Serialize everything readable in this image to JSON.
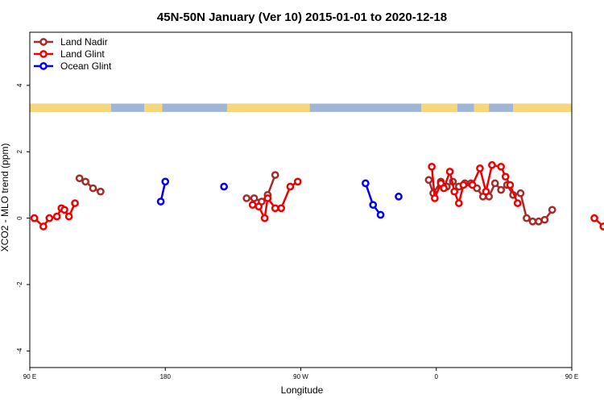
{
  "chart_data": {
    "type": "line",
    "title": "45N-50N January (Ver 10)   2015-01-01 to 2020-12-18",
    "xlabel": "Longitude",
    "ylabel": "XCO2 - MLO trend (ppm)",
    "xlim": [
      90,
      450
    ],
    "ylim": [
      -4.5,
      5.6
    ],
    "x_ticks": [
      {
        "value": 90,
        "label": "90 E"
      },
      {
        "value": 180,
        "label": "180"
      },
      {
        "value": 270,
        "label": "90 W"
      },
      {
        "value": 360,
        "label": "0"
      },
      {
        "value": 450,
        "label": "90 E"
      },
      {
        "value": 540,
        "label": "180"
      }
    ],
    "y_ticks": [
      {
        "value": -4,
        "label": "-4"
      },
      {
        "value": -2,
        "label": "-2"
      },
      {
        "value": 0,
        "label": "0"
      },
      {
        "value": 2,
        "label": "2"
      },
      {
        "value": 4,
        "label": "4"
      }
    ],
    "grid": false,
    "legend": {
      "position": "top-left"
    },
    "land_strip": {
      "y_range": [
        3.2,
        3.45
      ],
      "ocean_color": "#9fb6d6",
      "land_color": "#f7d77a",
      "land_segments": [
        [
          90,
          144
        ],
        [
          166,
          178
        ],
        [
          221,
          276
        ],
        [
          350,
          374
        ],
        [
          385,
          395
        ],
        [
          411,
          554
        ]
      ]
    },
    "series": [
      {
        "name": "Land Nadir",
        "color": "#a52a2a",
        "segments": [
          [
            [
              123,
              1.2
            ],
            [
              127,
              1.1
            ],
            [
              132,
              0.9
            ],
            [
              137,
              0.8
            ]
          ],
          [
            [
              234,
              0.6
            ],
            [
              239,
              0.6
            ],
            [
              244,
              0.5
            ],
            [
              248,
              0.7
            ],
            [
              253,
              1.3
            ]
          ],
          [
            [
              355,
              1.15
            ],
            [
              358,
              0.75
            ],
            [
              363,
              1.1
            ],
            [
              367,
              0.95
            ],
            [
              371,
              1.1
            ],
            [
              375,
              0.95
            ],
            [
              379,
              1.05
            ],
            [
              383,
              1.05
            ],
            [
              387,
              0.9
            ],
            [
              391,
              0.65
            ],
            [
              395,
              0.65
            ],
            [
              399,
              1.05
            ],
            [
              403,
              0.85
            ],
            [
              407,
              1.0
            ],
            [
              411,
              0.7
            ],
            [
              416,
              0.75
            ],
            [
              420,
              0.0
            ],
            [
              424,
              -0.1
            ],
            [
              428,
              -0.1
            ],
            [
              432,
              -0.05
            ],
            [
              437,
              0.25
            ]
          ],
          [
            [
              479,
              1.2
            ],
            [
              483,
              1.1
            ],
            [
              488,
              0.9
            ],
            [
              493,
              0.8
            ]
          ]
        ]
      },
      {
        "name": "Land Glint",
        "color": "#ee0000",
        "segments": [
          [
            [
              93,
              0.0
            ],
            [
              99,
              -0.25
            ],
            [
              103,
              0.0
            ],
            [
              108,
              0.05
            ],
            [
              111,
              0.3
            ],
            [
              113,
              0.25
            ],
            [
              116,
              0.05
            ],
            [
              120,
              0.45
            ]
          ],
          [
            [
              238,
              0.4
            ],
            [
              242,
              0.35
            ],
            [
              246,
              0.0
            ],
            [
              248,
              0.6
            ],
            [
              253,
              0.3
            ],
            [
              257,
              0.3
            ],
            [
              263,
              0.95
            ],
            [
              268,
              1.1
            ]
          ],
          [
            [
              357,
              1.55
            ],
            [
              359,
              0.6
            ],
            [
              363,
              1.05
            ],
            [
              365,
              0.9
            ],
            [
              369,
              1.4
            ],
            [
              372,
              0.8
            ],
            [
              375,
              0.45
            ],
            [
              378,
              1.0
            ],
            [
              384,
              1.0
            ],
            [
              389,
              1.5
            ],
            [
              393,
              0.8
            ],
            [
              397,
              1.6
            ],
            [
              403,
              1.55
            ],
            [
              406,
              1.25
            ],
            [
              409,
              1.0
            ],
            [
              414,
              0.45
            ]
          ],
          [
            [
              465,
              0.0
            ],
            [
              471,
              -0.25
            ],
            [
              475,
              0.0
            ],
            [
              480,
              0.05
            ],
            [
              483,
              0.3
            ],
            [
              485,
              0.25
            ],
            [
              488,
              0.05
            ],
            [
              492,
              0.45
            ]
          ]
        ]
      },
      {
        "name": "Ocean Glint",
        "color": "#0000ee",
        "segments": [
          [
            [
              177,
              0.5
            ],
            [
              180,
              1.1
            ]
          ],
          [
            [
              219,
              0.95
            ]
          ],
          [
            [
              313,
              1.05
            ],
            [
              318,
              0.4
            ],
            [
              323,
              0.1
            ]
          ],
          [
            [
              335,
              0.65
            ]
          ]
        ]
      }
    ]
  }
}
